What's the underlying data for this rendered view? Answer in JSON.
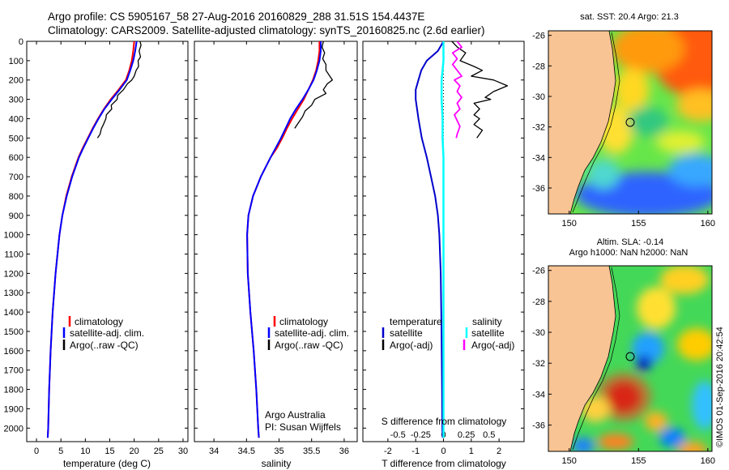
{
  "header": {
    "line1": "Argo profile: CS 5905167_58 27-Aug-2016 20160829_288 31.51S 154.4437E",
    "line2": "Climatology: CARS2009. Satellite-adjusted climatology: synTS_20160825.nc (2.6d earlier)"
  },
  "colors": {
    "climatology": "#ff0000",
    "satellite": "#0000ff",
    "argo": "#000000",
    "t_sat_diff": "#0000cc",
    "s_sat_diff": "#00ffff",
    "s_argo_diff": "#ff00ff",
    "land": "#f8c494"
  },
  "credit": {
    "agency": "Argo Australia",
    "pi": "PI: Susan Wijffels"
  },
  "watermark": "©IMOS 01-Sep-2016 20:42:54",
  "panels": {
    "temperature": {
      "xlabel": "temperature (deg C)",
      "legend": [
        "climatology",
        "satellite-adj. clim.",
        "Argo(..raw -QC)"
      ]
    },
    "salinity": {
      "xlabel": "salinity",
      "legend": [
        "climatology",
        "satellite-adj. clim.",
        "Argo(..raw -QC)"
      ]
    },
    "difference": {
      "xlabel_bottom": "T difference from climatology",
      "xlabel_top": "S difference from climatology",
      "legend_t_title": "temperature",
      "legend_s_title": "salinity",
      "legend_t": [
        "satellite",
        "Argo(-adj)"
      ],
      "legend_s": [
        "satellite",
        "Argo(-adj)"
      ]
    },
    "sst_map": {
      "title": "sat. SST: 20.4  Argo: 21.3"
    },
    "sla_map": {
      "title1": "Altim. SLA: -0.14",
      "title2": "Argo h1000: NaN h2000: NaN"
    }
  },
  "chart_data": [
    {
      "type": "line",
      "name": "temperature-profile",
      "xlabel": "temperature (deg C)",
      "ylabel": "",
      "xlim": [
        -2,
        31
      ],
      "ylim": [
        0,
        2070
      ],
      "y_inverted": true,
      "xticks": [
        0,
        5,
        10,
        15,
        20,
        25,
        30
      ],
      "yticks": [
        0,
        100,
        200,
        300,
        400,
        500,
        600,
        700,
        800,
        900,
        1000,
        1100,
        1200,
        1300,
        1400,
        1500,
        1600,
        1700,
        1800,
        1900,
        2000
      ],
      "series": [
        {
          "name": "climatology",
          "depth": [
            0,
            50,
            100,
            150,
            200,
            250,
            300,
            350,
            400,
            450,
            500,
            550,
            600,
            700,
            800,
            900,
            1000,
            1200,
            1400,
            1600,
            1800,
            2000,
            2050
          ],
          "values": [
            20.0,
            19.8,
            19.5,
            19.0,
            18.3,
            16.8,
            15.2,
            13.8,
            12.6,
            11.5,
            10.5,
            9.5,
            8.6,
            7.2,
            6.1,
            5.3,
            4.7,
            3.9,
            3.3,
            2.9,
            2.6,
            2.4,
            2.3
          ]
        },
        {
          "name": "satellite-adj. clim.",
          "depth": [
            0,
            50,
            100,
            150,
            200,
            250,
            300,
            350,
            400,
            450,
            500,
            550,
            600,
            700,
            800,
            900,
            1000,
            1200,
            1400,
            1600,
            1800,
            2000,
            2050
          ],
          "values": [
            20.5,
            20.2,
            19.8,
            19.2,
            18.5,
            17.0,
            15.4,
            13.9,
            12.7,
            11.6,
            10.6,
            9.6,
            8.7,
            7.3,
            6.2,
            5.3,
            4.7,
            3.9,
            3.3,
            2.9,
            2.6,
            2.4,
            2.3
          ]
        },
        {
          "name": "Argo(..raw -QC)",
          "depth": [
            0,
            20,
            50,
            80,
            100,
            130,
            150,
            180,
            200,
            220,
            250,
            280,
            300,
            330,
            350,
            380,
            400,
            430,
            450,
            480,
            500
          ],
          "values": [
            21.2,
            21.4,
            21.0,
            21.3,
            20.8,
            20.9,
            20.4,
            20.0,
            19.5,
            18.6,
            17.8,
            16.6,
            16.5,
            15.3,
            15.4,
            14.3,
            14.2,
            13.7,
            13.3,
            13.0,
            12.5
          ]
        }
      ]
    },
    {
      "type": "line",
      "name": "salinity-profile",
      "xlabel": "salinity",
      "ylabel": "",
      "xlim": [
        33.7,
        36.2
      ],
      "ylim": [
        0,
        2070
      ],
      "y_inverted": true,
      "xticks": [
        34,
        34.5,
        35,
        35.5,
        36
      ],
      "series": [
        {
          "name": "climatology",
          "depth": [
            0,
            50,
            100,
            150,
            200,
            250,
            300,
            350,
            400,
            450,
            500,
            550,
            600,
            700,
            800,
            900,
            1000,
            1200,
            1400,
            1600,
            1800,
            2000,
            2050
          ],
          "values": [
            35.62,
            35.62,
            35.6,
            35.57,
            35.52,
            35.45,
            35.38,
            35.29,
            35.2,
            35.12,
            35.05,
            34.97,
            34.87,
            34.72,
            34.6,
            34.53,
            34.51,
            34.52,
            34.56,
            34.61,
            34.65,
            34.68,
            34.69
          ]
        },
        {
          "name": "satellite-adj. clim.",
          "depth": [
            0,
            50,
            100,
            150,
            200,
            250,
            300,
            350,
            400,
            450,
            500,
            550,
            600,
            700,
            800,
            900,
            1000,
            1200,
            1400,
            1600,
            1800,
            2000,
            2050
          ],
          "values": [
            35.64,
            35.64,
            35.62,
            35.58,
            35.53,
            35.45,
            35.36,
            35.26,
            35.17,
            35.1,
            35.03,
            34.95,
            34.87,
            34.72,
            34.6,
            34.53,
            34.51,
            34.52,
            34.56,
            34.61,
            34.65,
            34.68,
            34.69
          ]
        },
        {
          "name": "Argo(..raw -QC)",
          "depth": [
            0,
            30,
            60,
            90,
            120,
            150,
            180,
            200,
            220,
            250,
            270,
            300,
            330,
            360,
            390,
            420,
            450
          ],
          "values": [
            35.68,
            35.66,
            35.7,
            35.67,
            35.72,
            35.72,
            35.78,
            35.82,
            35.74,
            35.68,
            35.72,
            35.55,
            35.5,
            35.4,
            35.36,
            35.3,
            35.24
          ]
        }
      ]
    },
    {
      "type": "line",
      "name": "difference-profile",
      "xlabel": "T difference from climatology",
      "xlabel_top": "S difference from climatology",
      "xlim": [
        -2.9,
        2.9
      ],
      "xticks_bottom": [
        -2,
        -1,
        0,
        1,
        2
      ],
      "xticks_top": [
        -0.5,
        -0.25,
        0,
        0.25,
        0.5
      ],
      "ylim": [
        0,
        2070
      ],
      "y_inverted": true,
      "series": [
        {
          "name": "temperature satellite",
          "depth": [
            0,
            50,
            100,
            150,
            200,
            250,
            300,
            350,
            400,
            500,
            600,
            700,
            800,
            900,
            1000,
            1200,
            1500,
            1800,
            2000,
            2050
          ],
          "values": [
            0.0,
            -0.2,
            -0.6,
            -0.8,
            -0.9,
            -1.0,
            -1.0,
            -0.95,
            -0.9,
            -0.78,
            -0.6,
            -0.45,
            -0.3,
            -0.2,
            -0.15,
            -0.1,
            -0.07,
            -0.05,
            -0.04,
            -0.03
          ]
        },
        {
          "name": "temperature Argo(-adj)",
          "depth": [
            0,
            30,
            60,
            100,
            130,
            150,
            180,
            200,
            230,
            260,
            290,
            300,
            320,
            350,
            380,
            400,
            430,
            460,
            500
          ],
          "values": [
            0.3,
            0.5,
            0.8,
            0.6,
            1.1,
            1.4,
            1.0,
            1.8,
            2.3,
            1.8,
            1.5,
            1.7,
            1.1,
            1.3,
            1.1,
            1.3,
            1.1,
            1.4,
            1.2
          ]
        },
        {
          "name": "salinity satellite",
          "depth": [
            0,
            50,
            100,
            150,
            200,
            300,
            400,
            500,
            600,
            800,
            1000,
            1500,
            2000,
            2050
          ],
          "values": [
            0.0,
            0.0,
            0.0,
            -0.01,
            -0.02,
            -0.02,
            -0.01,
            -0.01,
            0.0,
            0.0,
            0.0,
            0.0,
            0.0,
            0.0
          ]
        },
        {
          "name": "salinity Argo(-adj)",
          "depth": [
            0,
            30,
            60,
            90,
            120,
            150,
            180,
            200,
            230,
            260,
            290,
            320,
            350,
            380,
            410,
            440,
            480,
            500
          ],
          "values": [
            0.15,
            0.2,
            0.1,
            0.15,
            0.1,
            0.15,
            0.2,
            0.12,
            0.18,
            0.15,
            0.2,
            0.15,
            0.18,
            0.12,
            0.15,
            0.18,
            0.15,
            0.14
          ]
        }
      ]
    },
    {
      "type": "heatmap",
      "name": "sst-map",
      "title": "sat. SST: 20.4  Argo: 21.3",
      "xlim": [
        148.5,
        160.3
      ],
      "ylim": [
        -37.7,
        -25.7
      ],
      "xticks": [
        150,
        155,
        160
      ],
      "yticks": [
        -26,
        -28,
        -30,
        -32,
        -34,
        -36
      ],
      "marker": {
        "lon": 154.44,
        "lat": -31.51
      }
    },
    {
      "type": "heatmap",
      "name": "sla-map",
      "title": "Altim. SLA: -0.14",
      "subtitle": "Argo h1000: NaN h2000: NaN",
      "xlim": [
        148.5,
        160.3
      ],
      "ylim": [
        -37.7,
        -25.7
      ],
      "xticks": [
        150,
        155,
        160
      ],
      "yticks": [
        -26,
        -28,
        -30,
        -32,
        -34,
        -36
      ],
      "marker": {
        "lon": 154.44,
        "lat": -31.51
      }
    }
  ]
}
